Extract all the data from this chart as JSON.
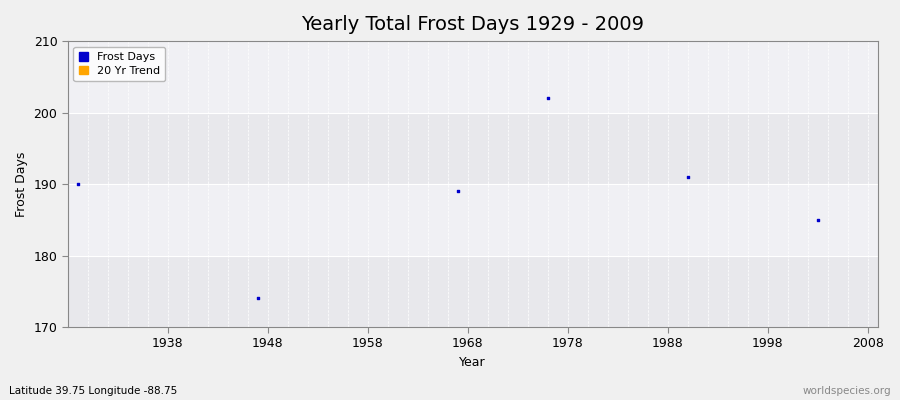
{
  "title": "Yearly Total Frost Days 1929 - 2009",
  "xlabel": "Year",
  "ylabel": "Frost Days",
  "figure_bg": "#f0f0f0",
  "plot_bg": "#e8e8ec",
  "band_color_light": "#f0f0f4",
  "xlim": [
    1928,
    2009
  ],
  "ylim": [
    170,
    210
  ],
  "yticks": [
    170,
    180,
    190,
    200,
    210
  ],
  "xticks": [
    1938,
    1948,
    1958,
    1968,
    1978,
    1988,
    1998,
    2008
  ],
  "frost_days_x": [
    1929,
    1947,
    1967,
    1976,
    1990,
    2003
  ],
  "frost_days_y": [
    190,
    174,
    189,
    202,
    191,
    185
  ],
  "frost_color": "#0000cc",
  "trend_color": "#ffa500",
  "legend_labels": [
    "Frost Days",
    "20 Yr Trend"
  ],
  "grid_color": "#ffffff",
  "title_fontsize": 14,
  "axis_fontsize": 9,
  "tick_fontsize": 9,
  "bottom_left_text": "Latitude 39.75 Longitude -88.75",
  "bottom_right_text": "worldspecies.org",
  "marker_size": 2
}
